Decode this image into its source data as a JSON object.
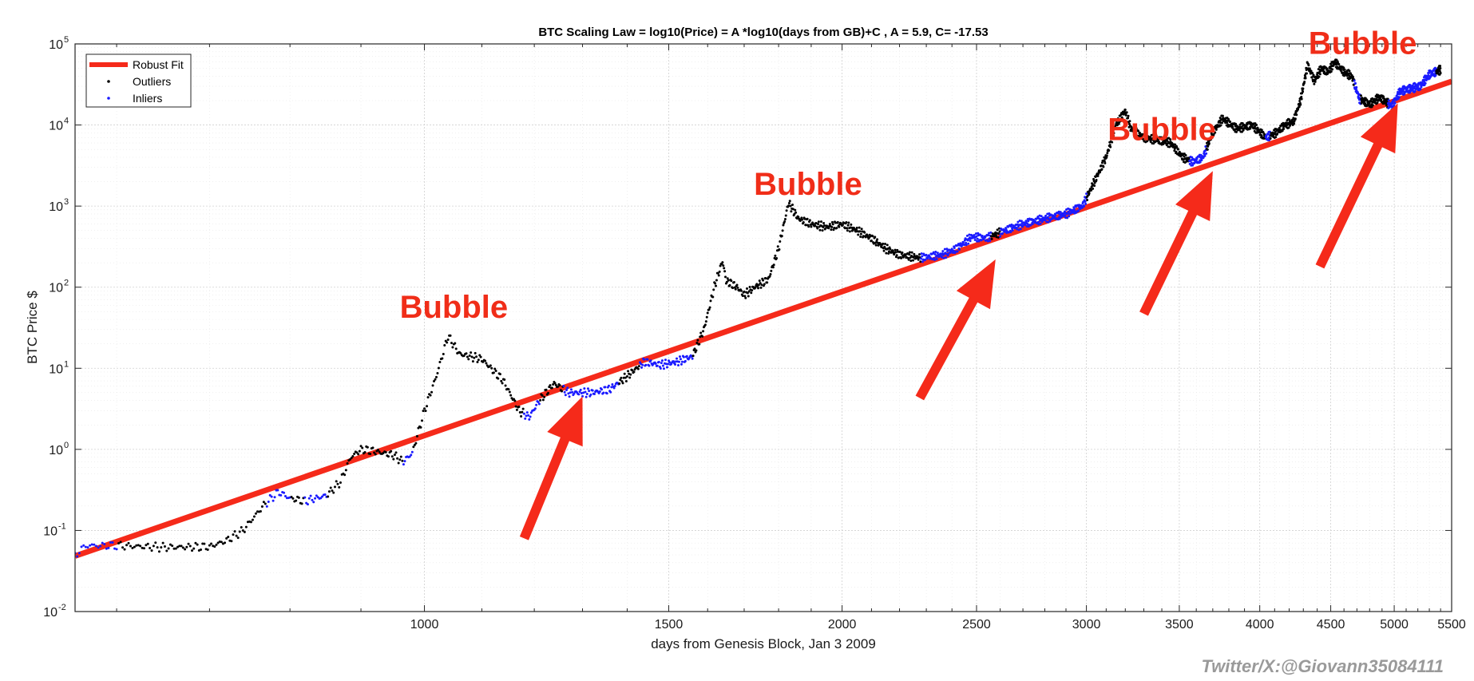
{
  "chart_data": {
    "type": "scatter",
    "title": "BTC Scaling Law = log10(Price) = A *log10(days from GB)+C , A = 5.9, C= -17.53",
    "xlabel": "days from Genesis Block, Jan 3 2009",
    "ylabel": "BTC Price $",
    "xscale": "log",
    "yscale": "log",
    "xlim": [
      560,
      5500
    ],
    "ylim": [
      0.01,
      100000
    ],
    "grid": true,
    "xticks": [
      {
        "value": 1000,
        "label": "1000"
      },
      {
        "value": 1500,
        "label": "1500"
      },
      {
        "value": 2000,
        "label": "2000"
      },
      {
        "value": 2500,
        "label": "2500"
      },
      {
        "value": 3000,
        "label": "3000"
      },
      {
        "value": 3500,
        "label": "3500"
      },
      {
        "value": 4000,
        "label": "4000"
      },
      {
        "value": 4500,
        "label": "4500"
      },
      {
        "value": 5000,
        "label": "5000"
      },
      {
        "value": 5500,
        "label": "5500"
      }
    ],
    "yticks": [
      {
        "value": 0.01,
        "base": "10",
        "exp": "-2"
      },
      {
        "value": 0.1,
        "base": "10",
        "exp": "-1"
      },
      {
        "value": 1,
        "base": "10",
        "exp": "0"
      },
      {
        "value": 10,
        "base": "10",
        "exp": "1"
      },
      {
        "value": 100,
        "base": "10",
        "exp": "2"
      },
      {
        "value": 1000,
        "base": "10",
        "exp": "3"
      },
      {
        "value": 10000,
        "base": "10",
        "exp": "4"
      },
      {
        "value": 100000,
        "base": "10",
        "exp": "5"
      }
    ],
    "fit": {
      "name": "Robust Fit",
      "A": 5.9,
      "C": -17.53,
      "color": "#f52a1a",
      "x_range": [
        560,
        5500
      ]
    },
    "legend": {
      "position": "top-left",
      "entries": [
        {
          "label": "Robust Fit",
          "kind": "line",
          "color": "#f52a1a"
        },
        {
          "label": "Outliers",
          "kind": "point",
          "color": "#000000"
        },
        {
          "label": "Inliers",
          "kind": "point",
          "color": "#1a1aff"
        }
      ]
    },
    "price_path": [
      [
        560,
        0.05
      ],
      [
        570,
        0.065
      ],
      [
        600,
        0.065
      ],
      [
        650,
        0.062
      ],
      [
        700,
        0.063
      ],
      [
        720,
        0.075
      ],
      [
        740,
        0.1
      ],
      [
        765,
        0.2
      ],
      [
        785,
        0.3
      ],
      [
        800,
        0.25
      ],
      [
        820,
        0.23
      ],
      [
        850,
        0.27
      ],
      [
        870,
        0.4
      ],
      [
        885,
        0.8
      ],
      [
        900,
        1.0
      ],
      [
        920,
        0.95
      ],
      [
        950,
        0.85
      ],
      [
        965,
        0.7
      ],
      [
        980,
        0.9
      ],
      [
        1000,
        3
      ],
      [
        1020,
        8
      ],
      [
        1040,
        25
      ],
      [
        1060,
        15
      ],
      [
        1100,
        13
      ],
      [
        1140,
        7
      ],
      [
        1170,
        3
      ],
      [
        1190,
        2.5
      ],
      [
        1210,
        4
      ],
      [
        1240,
        6.5
      ],
      [
        1270,
        5
      ],
      [
        1320,
        5
      ],
      [
        1360,
        5.5
      ],
      [
        1400,
        8
      ],
      [
        1440,
        12
      ],
      [
        1480,
        11
      ],
      [
        1520,
        12
      ],
      [
        1560,
        14
      ],
      [
        1590,
        30
      ],
      [
        1620,
        110
      ],
      [
        1640,
        210
      ],
      [
        1650,
        120
      ],
      [
        1680,
        100
      ],
      [
        1700,
        80
      ],
      [
        1730,
        100
      ],
      [
        1770,
        125
      ],
      [
        1800,
        300
      ],
      [
        1830,
        1100
      ],
      [
        1860,
        700
      ],
      [
        1900,
        600
      ],
      [
        1950,
        550
      ],
      [
        2000,
        600
      ],
      [
        2050,
        500
      ],
      [
        2100,
        400
      ],
      [
        2150,
        300
      ],
      [
        2200,
        250
      ],
      [
        2280,
        230
      ],
      [
        2360,
        250
      ],
      [
        2420,
        300
      ],
      [
        2480,
        420
      ],
      [
        2540,
        400
      ],
      [
        2620,
        500
      ],
      [
        2700,
        600
      ],
      [
        2800,
        700
      ],
      [
        2900,
        800
      ],
      [
        2980,
        1000
      ],
      [
        3040,
        2000
      ],
      [
        3100,
        4000
      ],
      [
        3150,
        10000
      ],
      [
        3200,
        15000
      ],
      [
        3230,
        9000
      ],
      [
        3300,
        7000
      ],
      [
        3380,
        6500
      ],
      [
        3450,
        6000
      ],
      [
        3520,
        4000
      ],
      [
        3580,
        3500
      ],
      [
        3640,
        4000
      ],
      [
        3700,
        8000
      ],
      [
        3760,
        12000
      ],
      [
        3850,
        9000
      ],
      [
        3950,
        10000
      ],
      [
        4040,
        7000
      ],
      [
        4110,
        8000
      ],
      [
        4170,
        10000
      ],
      [
        4230,
        11000
      ],
      [
        4280,
        20000
      ],
      [
        4330,
        55000
      ],
      [
        4380,
        35000
      ],
      [
        4430,
        50000
      ],
      [
        4480,
        45000
      ],
      [
        4530,
        60000
      ],
      [
        4600,
        45000
      ],
      [
        4660,
        40000
      ],
      [
        4720,
        21000
      ],
      [
        4800,
        18000
      ],
      [
        4880,
        22000
      ],
      [
        4980,
        17000
      ],
      [
        5050,
        26000
      ],
      [
        5130,
        28000
      ],
      [
        5220,
        30000
      ],
      [
        5300,
        42000
      ],
      [
        5400,
        48000
      ]
    ],
    "inlier_ranges": [
      [
        560,
        600
      ],
      [
        770,
        800
      ],
      [
        820,
        850
      ],
      [
        965,
        980
      ],
      [
        1180,
        1210
      ],
      [
        1260,
        1380
      ],
      [
        1430,
        1560
      ],
      [
        2280,
        2560
      ],
      [
        2600,
        3000
      ],
      [
        3560,
        3660
      ],
      [
        4040,
        4070
      ],
      [
        4680,
        4730
      ],
      [
        4950,
        5360
      ]
    ],
    "annotations": {
      "bubbles": [
        {
          "text": "Bubble",
          "x": 1050,
          "y": 42
        },
        {
          "text": "Bubble",
          "x": 1890,
          "y": 1380
        },
        {
          "text": "Bubble",
          "x": 3400,
          "y": 6500
        },
        {
          "text": "Bubble",
          "x": 4745,
          "y": 75000
        }
      ],
      "arrows": [
        {
          "from": [
            1180,
            0.08
          ],
          "to": [
            1300,
            4.5
          ]
        },
        {
          "from": [
            2275,
            4.3
          ],
          "to": [
            2580,
            220
          ]
        },
        {
          "from": [
            3300,
            47
          ],
          "to": [
            3700,
            2700
          ]
        },
        {
          "from": [
            4420,
            180
          ],
          "to": [
            5030,
            18500
          ]
        }
      ]
    },
    "credit": "Twitter/X:@Giovann35084111"
  }
}
